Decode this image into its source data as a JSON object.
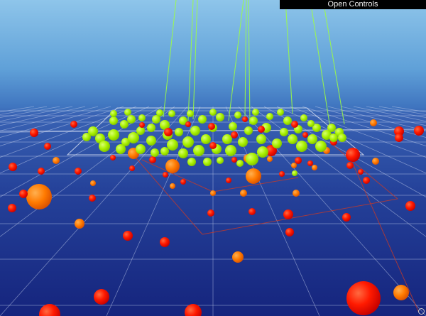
{
  "gui": {
    "toggle_label": "Open Controls"
  },
  "colors": {
    "sky_top": "#8fc8ea",
    "sky_mid": "#3f7cc4",
    "floor_near": "#1a2a86",
    "floor_far": "#2c4fa6",
    "grid_line": "#c8d4f0",
    "box_line": "#e0e6f5",
    "sphere_green": "#a8f000",
    "sphere_red": "#ff1a00",
    "sphere_orange": "#ff7a00",
    "tether_line": "#9cff40",
    "helper_line": "#d03a22"
  }
}
